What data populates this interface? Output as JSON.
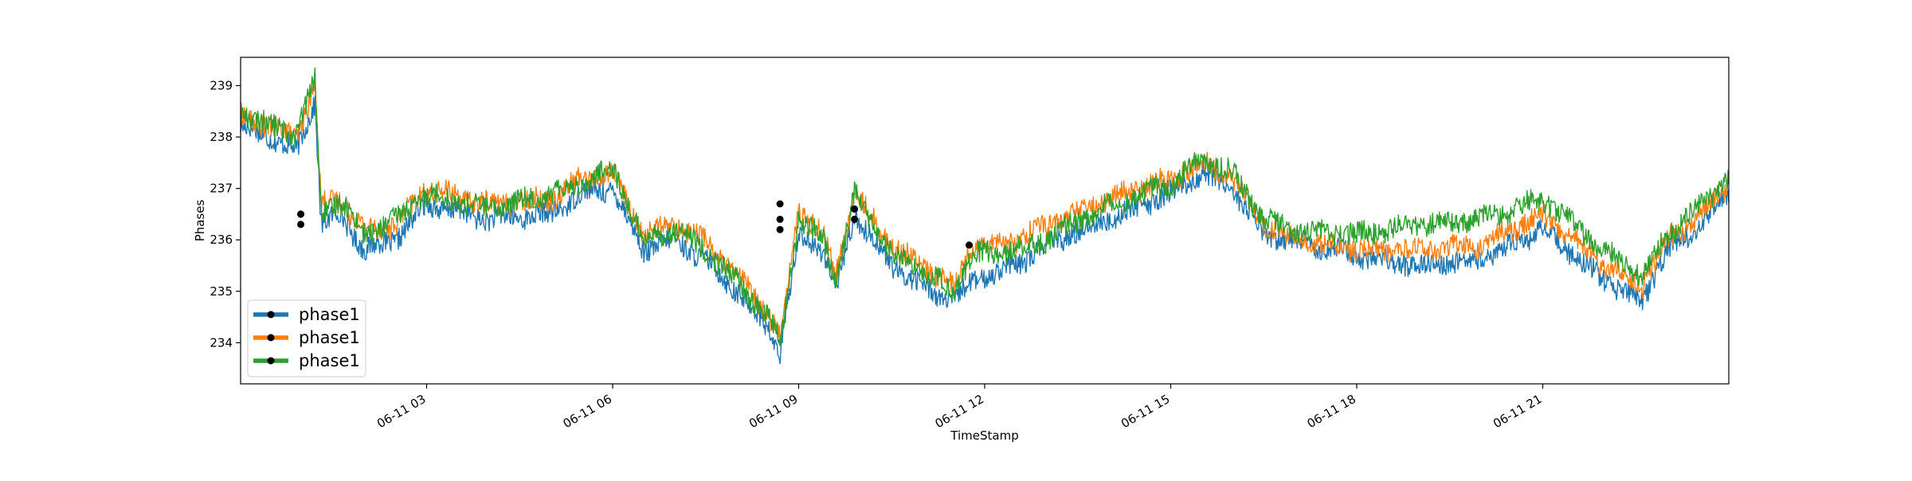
{
  "chart_data": {
    "type": "line",
    "title": "",
    "xlabel": "TimeStamp",
    "ylabel": "Phases",
    "x_unit": "hours",
    "xlim": [
      "06-11 00:00",
      "06-12 00:00"
    ],
    "ylim": [
      233.2,
      239.55
    ],
    "grid": false,
    "legend_position": "lower-left",
    "x_tick_labels": [
      "06-11 03",
      "06-11 06",
      "06-11 09",
      "06-11 12",
      "06-11 15",
      "06-11 18",
      "06-11 21"
    ],
    "y_tick_labels": [
      "234",
      "235",
      "236",
      "237",
      "238",
      "239"
    ],
    "x_ticks": [
      3,
      6,
      9,
      12,
      15,
      18,
      21
    ],
    "y_ticks": [
      234,
      235,
      236,
      237,
      238,
      239
    ],
    "series": [
      {
        "name": "phase1",
        "color": "#1f77b4",
        "x": [
          0,
          0.5,
          0.9,
          1.2,
          1.3,
          1.6,
          2.0,
          2.5,
          3.0,
          4.0,
          5.0,
          5.5,
          6.0,
          6.5,
          7.0,
          7.5,
          8.0,
          8.5,
          8.7,
          9.0,
          9.4,
          9.6,
          9.9,
          10.5,
          11.0,
          11.5,
          11.8,
          12.5,
          13.0,
          14.0,
          15.0,
          15.5,
          16.0,
          16.5,
          17.0,
          18.0,
          19.0,
          20.0,
          21.0,
          22.0,
          22.6,
          23.0,
          23.5,
          24.0
        ],
        "y": [
          238.2,
          238.0,
          237.7,
          238.7,
          236.3,
          236.5,
          235.8,
          236.0,
          236.7,
          236.4,
          236.5,
          236.9,
          237.0,
          235.8,
          236.0,
          235.6,
          235.0,
          234.3,
          233.8,
          236.1,
          235.8,
          235.0,
          236.5,
          235.5,
          235.1,
          234.8,
          235.2,
          235.5,
          235.9,
          236.4,
          236.9,
          237.3,
          237.0,
          236.1,
          236.0,
          235.7,
          235.5,
          235.6,
          236.2,
          235.2,
          234.8,
          235.8,
          236.2,
          236.9
        ]
      },
      {
        "name": "phase1",
        "color": "#ff7f0e",
        "x": [
          0,
          0.5,
          0.9,
          1.2,
          1.3,
          1.6,
          2.0,
          2.5,
          3.0,
          4.0,
          5.0,
          5.5,
          6.0,
          6.5,
          7.0,
          7.5,
          8.0,
          8.5,
          8.7,
          9.0,
          9.4,
          9.6,
          9.9,
          10.5,
          11.0,
          11.5,
          11.8,
          12.5,
          13.0,
          14.0,
          15.0,
          15.5,
          16.0,
          16.5,
          17.0,
          18.0,
          19.0,
          20.0,
          21.0,
          22.0,
          22.6,
          23.0,
          23.5,
          24.0
        ],
        "y": [
          238.4,
          238.2,
          238.0,
          239.0,
          236.7,
          236.8,
          236.2,
          236.3,
          237.0,
          236.7,
          236.8,
          237.2,
          237.3,
          236.1,
          236.3,
          236.0,
          235.3,
          234.6,
          234.1,
          236.6,
          236.1,
          235.3,
          236.9,
          235.9,
          235.5,
          235.1,
          235.9,
          236.0,
          236.3,
          236.8,
          237.2,
          237.5,
          237.2,
          236.3,
          236.0,
          235.8,
          235.8,
          235.9,
          236.5,
          235.5,
          235.1,
          236.0,
          236.4,
          237.1
        ]
      },
      {
        "name": "phase1",
        "color": "#2ca02c",
        "x": [
          0,
          0.5,
          0.9,
          1.2,
          1.3,
          1.6,
          2.0,
          2.5,
          3.0,
          4.0,
          5.0,
          5.5,
          6.0,
          6.5,
          7.0,
          7.5,
          8.0,
          8.5,
          8.7,
          9.0,
          9.4,
          9.6,
          9.9,
          10.5,
          11.0,
          11.5,
          11.8,
          12.5,
          13.0,
          14.0,
          15.0,
          15.5,
          16.0,
          16.5,
          17.0,
          18.0,
          19.0,
          20.0,
          21.0,
          22.0,
          22.6,
          23.0,
          23.5,
          24.0
        ],
        "y": [
          238.5,
          238.2,
          238.1,
          239.1,
          236.5,
          236.8,
          236.1,
          236.4,
          236.9,
          236.6,
          236.9,
          237.1,
          237.4,
          236.0,
          236.2,
          235.8,
          235.2,
          234.5,
          234.0,
          236.4,
          236.0,
          235.2,
          236.9,
          235.7,
          235.4,
          235.0,
          235.7,
          235.8,
          236.0,
          236.7,
          237.1,
          237.6,
          237.3,
          236.4,
          236.2,
          236.1,
          236.3,
          236.4,
          236.8,
          235.8,
          235.3,
          236.1,
          236.6,
          237.2
        ]
      }
    ],
    "markers": [
      {
        "series": 0,
        "x": 0.97,
        "y": 236.3
      },
      {
        "series": 1,
        "x": 0.97,
        "y": 236.5
      },
      {
        "series": 2,
        "x": 0.97,
        "y": 236.5
      },
      {
        "series": 0,
        "x": 8.7,
        "y": 236.4
      },
      {
        "series": 1,
        "x": 8.7,
        "y": 236.7
      },
      {
        "series": 2,
        "x": 8.7,
        "y": 236.2
      },
      {
        "series": 0,
        "x": 9.9,
        "y": 236.6
      },
      {
        "series": 1,
        "x": 9.9,
        "y": 236.6
      },
      {
        "series": 2,
        "x": 9.9,
        "y": 236.4
      },
      {
        "series": 1,
        "x": 11.75,
        "y": 235.9
      }
    ]
  }
}
